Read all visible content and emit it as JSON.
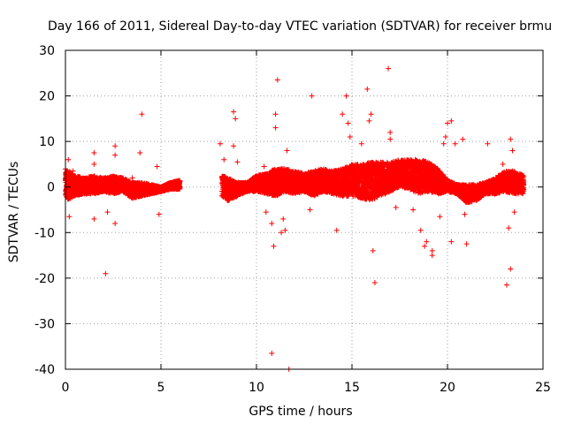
{
  "chart_data": {
    "type": "scatter",
    "title": "Day 166 of 2011, Sidereal Day-to-day VTEC variation (SDTVAR) for receiver brmu",
    "xlabel": "GPS time / hours",
    "ylabel": "SDTVAR / TECUs",
    "xlim": [
      0,
      25
    ],
    "ylim": [
      -40,
      30
    ],
    "grid": true,
    "marker": "plus",
    "color": "#ff0000",
    "x_ticks": [
      0,
      5,
      10,
      15,
      20,
      25
    ],
    "x_tick_labels": [
      "0",
      "5",
      "10",
      "15",
      "20",
      "25"
    ],
    "y_ticks": [
      -40,
      -30,
      -20,
      -10,
      0,
      10,
      20,
      30
    ],
    "y_tick_labels": [
      "-40",
      "-30",
      "-20",
      "-10",
      "0",
      "10",
      "20",
      "30"
    ],
    "data_gap_hours": [
      6.1,
      8.0
    ],
    "band_envelope": [
      {
        "x": 0.0,
        "low": -3.0,
        "high": 4.0
      },
      {
        "x": 0.5,
        "low": -2.0,
        "high": 2.5
      },
      {
        "x": 1.0,
        "low": -1.5,
        "high": 2.0
      },
      {
        "x": 1.5,
        "low": -1.5,
        "high": 2.5
      },
      {
        "x": 2.0,
        "low": -1.0,
        "high": 2.0
      },
      {
        "x": 2.5,
        "low": -1.5,
        "high": 2.5
      },
      {
        "x": 3.0,
        "low": -1.0,
        "high": 2.0
      },
      {
        "x": 3.5,
        "low": -2.5,
        "high": 1.0
      },
      {
        "x": 4.0,
        "low": -2.0,
        "high": 1.0
      },
      {
        "x": 4.5,
        "low": -1.5,
        "high": 0.5
      },
      {
        "x": 5.0,
        "low": -1.0,
        "high": 0.0
      },
      {
        "x": 5.5,
        "low": -0.5,
        "high": 1.0
      },
      {
        "x": 6.0,
        "low": -0.5,
        "high": 1.5
      },
      {
        "x": 8.2,
        "low": -2.0,
        "high": 2.5
      },
      {
        "x": 8.5,
        "low": -3.0,
        "high": 2.0
      },
      {
        "x": 9.0,
        "low": -2.0,
        "high": 1.0
      },
      {
        "x": 9.5,
        "low": -1.0,
        "high": 1.0
      },
      {
        "x": 10.0,
        "low": -1.0,
        "high": 2.5
      },
      {
        "x": 10.5,
        "low": -1.5,
        "high": 3.0
      },
      {
        "x": 11.0,
        "low": -2.0,
        "high": 4.0
      },
      {
        "x": 11.5,
        "low": -1.0,
        "high": 4.0
      },
      {
        "x": 12.0,
        "low": -1.5,
        "high": 3.5
      },
      {
        "x": 12.5,
        "low": -1.0,
        "high": 3.0
      },
      {
        "x": 13.0,
        "low": -2.0,
        "high": 3.5
      },
      {
        "x": 13.5,
        "low": -1.0,
        "high": 4.0
      },
      {
        "x": 14.0,
        "low": -1.5,
        "high": 3.5
      },
      {
        "x": 14.5,
        "low": -2.0,
        "high": 4.0
      },
      {
        "x": 15.0,
        "low": -2.0,
        "high": 5.0
      },
      {
        "x": 15.5,
        "low": -2.5,
        "high": 5.0
      },
      {
        "x": 16.0,
        "low": -3.0,
        "high": 5.5
      },
      {
        "x": 16.5,
        "low": -2.0,
        "high": 5.5
      },
      {
        "x": 17.0,
        "low": -1.0,
        "high": 5.5
      },
      {
        "x": 17.5,
        "low": 0.0,
        "high": 6.0
      },
      {
        "x": 18.0,
        "low": -0.5,
        "high": 6.0
      },
      {
        "x": 18.5,
        "low": -1.5,
        "high": 6.0
      },
      {
        "x": 19.0,
        "low": -1.0,
        "high": 5.5
      },
      {
        "x": 19.5,
        "low": -1.5,
        "high": 4.0
      },
      {
        "x": 20.0,
        "low": -1.0,
        "high": 1.5
      },
      {
        "x": 20.5,
        "low": -1.5,
        "high": 0.5
      },
      {
        "x": 21.0,
        "low": -3.5,
        "high": 0.5
      },
      {
        "x": 21.5,
        "low": -3.0,
        "high": 0.5
      },
      {
        "x": 22.0,
        "low": -1.5,
        "high": 1.0
      },
      {
        "x": 22.5,
        "low": -1.5,
        "high": 2.0
      },
      {
        "x": 23.0,
        "low": -1.0,
        "high": 3.5
      },
      {
        "x": 23.5,
        "low": -1.5,
        "high": 3.5
      },
      {
        "x": 24.0,
        "low": -1.5,
        "high": 2.5
      }
    ],
    "outliers": [
      {
        "x": 0.15,
        "y": 6.0
      },
      {
        "x": 0.2,
        "y": -6.5
      },
      {
        "x": 0.4,
        "y": 3.5
      },
      {
        "x": 1.5,
        "y": 7.5
      },
      {
        "x": 1.5,
        "y": 5.0
      },
      {
        "x": 1.5,
        "y": -7.0
      },
      {
        "x": 2.1,
        "y": -19.0
      },
      {
        "x": 2.2,
        "y": -5.5
      },
      {
        "x": 2.6,
        "y": 9.0
      },
      {
        "x": 2.6,
        "y": 7.0
      },
      {
        "x": 2.6,
        "y": -8.0
      },
      {
        "x": 3.5,
        "y": 2.0
      },
      {
        "x": 4.0,
        "y": 16.0
      },
      {
        "x": 3.9,
        "y": 7.5
      },
      {
        "x": 4.8,
        "y": 4.5
      },
      {
        "x": 4.9,
        "y": -6.0
      },
      {
        "x": 8.1,
        "y": 9.5
      },
      {
        "x": 8.3,
        "y": 6.0
      },
      {
        "x": 8.8,
        "y": 16.5
      },
      {
        "x": 8.9,
        "y": 15.0
      },
      {
        "x": 8.8,
        "y": 9.0
      },
      {
        "x": 9.0,
        "y": 5.5
      },
      {
        "x": 10.4,
        "y": 4.5
      },
      {
        "x": 10.5,
        "y": -5.5
      },
      {
        "x": 10.8,
        "y": -36.5
      },
      {
        "x": 10.8,
        "y": -8.0
      },
      {
        "x": 10.9,
        "y": -13.0
      },
      {
        "x": 11.0,
        "y": 16.0
      },
      {
        "x": 11.0,
        "y": 13.0
      },
      {
        "x": 11.1,
        "y": 23.5
      },
      {
        "x": 11.3,
        "y": -10.0
      },
      {
        "x": 11.4,
        "y": -7.0
      },
      {
        "x": 11.5,
        "y": -9.5
      },
      {
        "x": 11.7,
        "y": -40.0
      },
      {
        "x": 11.6,
        "y": 8.0
      },
      {
        "x": 12.9,
        "y": 20.0
      },
      {
        "x": 12.8,
        "y": -5.0
      },
      {
        "x": 14.2,
        "y": -9.5
      },
      {
        "x": 14.5,
        "y": 16.0
      },
      {
        "x": 14.7,
        "y": 20.0
      },
      {
        "x": 14.8,
        "y": 14.0
      },
      {
        "x": 14.9,
        "y": 11.0
      },
      {
        "x": 15.5,
        "y": 9.5
      },
      {
        "x": 15.8,
        "y": 21.5
      },
      {
        "x": 15.9,
        "y": 14.5
      },
      {
        "x": 16.0,
        "y": 16.0
      },
      {
        "x": 16.1,
        "y": -14.0
      },
      {
        "x": 16.2,
        "y": -21.0
      },
      {
        "x": 16.9,
        "y": 26.0
      },
      {
        "x": 17.0,
        "y": 12.0
      },
      {
        "x": 17.0,
        "y": 10.5
      },
      {
        "x": 17.3,
        "y": -4.5
      },
      {
        "x": 18.2,
        "y": -5.0
      },
      {
        "x": 18.6,
        "y": -9.5
      },
      {
        "x": 18.8,
        "y": -13.0
      },
      {
        "x": 18.9,
        "y": -12.0
      },
      {
        "x": 19.2,
        "y": -15.0
      },
      {
        "x": 19.2,
        "y": -14.0
      },
      {
        "x": 19.6,
        "y": -6.5
      },
      {
        "x": 19.8,
        "y": 9.5
      },
      {
        "x": 19.9,
        "y": 11.0
      },
      {
        "x": 20.0,
        "y": 14.0
      },
      {
        "x": 20.2,
        "y": 14.5
      },
      {
        "x": 20.4,
        "y": 9.5
      },
      {
        "x": 20.2,
        "y": -12.0
      },
      {
        "x": 20.8,
        "y": 10.5
      },
      {
        "x": 20.9,
        "y": -6.0
      },
      {
        "x": 21.0,
        "y": -12.5
      },
      {
        "x": 22.1,
        "y": 9.5
      },
      {
        "x": 22.9,
        "y": 5.0
      },
      {
        "x": 23.1,
        "y": -21.5
      },
      {
        "x": 23.2,
        "y": -9.0
      },
      {
        "x": 23.3,
        "y": -18.0
      },
      {
        "x": 23.3,
        "y": 10.5
      },
      {
        "x": 23.4,
        "y": 8.0
      },
      {
        "x": 23.5,
        "y": -5.5
      }
    ]
  }
}
